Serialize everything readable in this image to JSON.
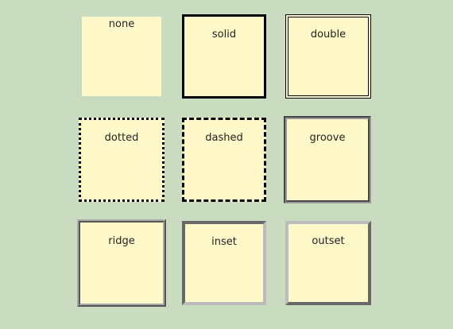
{
  "boxes": [
    {
      "label": "none"
    },
    {
      "label": "solid"
    },
    {
      "label": "double"
    },
    {
      "label": "dotted"
    },
    {
      "label": "dashed"
    },
    {
      "label": "groove"
    },
    {
      "label": "ridge"
    },
    {
      "label": "inset"
    },
    {
      "label": "outset"
    }
  ],
  "colors": {
    "page_background": "#c9dcbf",
    "box_fill": "#fff9ca",
    "border_dark": "#000000",
    "border_gray": "#9a9a9a"
  }
}
